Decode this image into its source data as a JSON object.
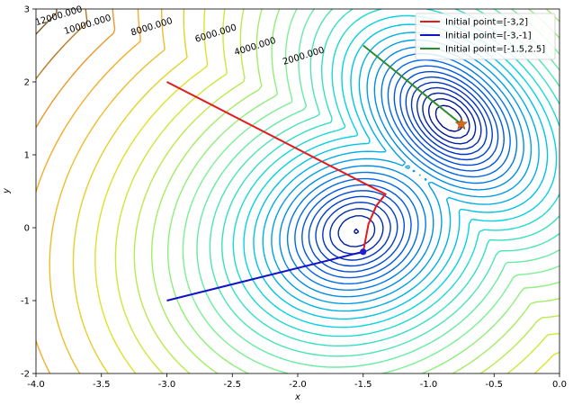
{
  "chart_data": {
    "type": "line",
    "xlabel": "x",
    "ylabel": "y",
    "xlim": [
      -4.0,
      0.0
    ],
    "ylim": [
      -2,
      3
    ],
    "x_ticks": [
      "-4.0",
      "-3.5",
      "-3.0",
      "-2.5",
      "-2.0",
      "-1.5",
      "-1.0",
      "-0.5",
      "0.0"
    ],
    "y_ticks": [
      "-2",
      "-1",
      "0",
      "1",
      "2",
      "3"
    ],
    "grid": false,
    "legend_position": "top-right",
    "contour_labels": [
      {
        "text": "12000.000",
        "x": -3.82,
        "y": 2.87
      },
      {
        "text": "10000.000",
        "x": -3.6,
        "y": 2.75
      },
      {
        "text": "8000.000",
        "x": -3.11,
        "y": 2.72
      },
      {
        "text": "6000.000",
        "x": -2.62,
        "y": 2.63
      },
      {
        "text": "4000.000",
        "x": -2.32,
        "y": 2.45
      },
      {
        "text": "2000.000",
        "x": -1.95,
        "y": 2.32
      }
    ],
    "series": [
      {
        "name": "Initial point=[-3,2]",
        "color": "#e41a1c",
        "points": [
          [
            -3.0,
            2.0
          ],
          [
            -1.33,
            0.46
          ],
          [
            -1.4,
            0.3
          ],
          [
            -1.46,
            0.05
          ],
          [
            -1.5,
            -0.33
          ]
        ],
        "end_marker": "circle",
        "end_color": "#1f1fd6"
      },
      {
        "name": "Initial point=[-3,-1]",
        "color": "#1212c8",
        "points": [
          [
            -3.0,
            -1.0
          ],
          [
            -1.5,
            -0.33
          ]
        ],
        "end_marker": "circle",
        "end_color": "#1f1fd6"
      },
      {
        "name": "Initial point=[-1.5,2.5]",
        "color": "#2e8b2e",
        "points": [
          [
            -1.5,
            2.5
          ],
          [
            -0.75,
            1.42
          ]
        ],
        "end_marker": "star",
        "end_color": "#d2691e"
      }
    ]
  }
}
